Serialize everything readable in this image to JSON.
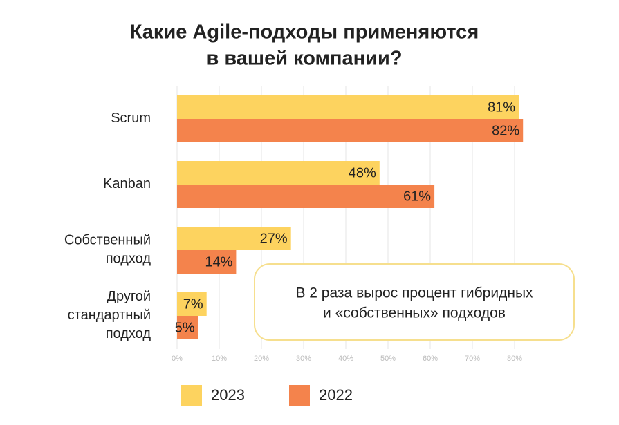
{
  "chart_data": {
    "type": "hbar",
    "title": [
      "Какие Agile-подходы применяются",
      "в вашей компании?"
    ],
    "categories": [
      "Scrum",
      "Kanban",
      "Собственный подход",
      "Другой стандартный подход"
    ],
    "series": [
      {
        "name": "2023",
        "color": "#fdd35f",
        "values": [
          81,
          48,
          27,
          7
        ],
        "value_labels": [
          "81%",
          "48%",
          "27%",
          "7%"
        ]
      },
      {
        "name": "2022",
        "color": "#f4834c",
        "values": [
          82,
          61,
          14,
          5
        ],
        "value_labels": [
          "82%",
          "61%",
          "14%",
          "5%"
        ]
      }
    ],
    "xlim": [
      0,
      80
    ],
    "xticks": [
      {
        "value": 0,
        "label": "0%"
      },
      {
        "value": 10,
        "label": "10%"
      },
      {
        "value": 20,
        "label": "20%"
      },
      {
        "value": 30,
        "label": "30%"
      },
      {
        "value": 40,
        "label": "40%"
      },
      {
        "value": 50,
        "label": "50%"
      },
      {
        "value": 60,
        "label": "60%"
      },
      {
        "value": 70,
        "label": "70%"
      },
      {
        "value": 80,
        "label": "80%"
      }
    ],
    "grid": true,
    "legend": "bottom",
    "annotation": [
      "В 2 раза вырос процент гибридных",
      "и «собственных» подходов"
    ]
  }
}
